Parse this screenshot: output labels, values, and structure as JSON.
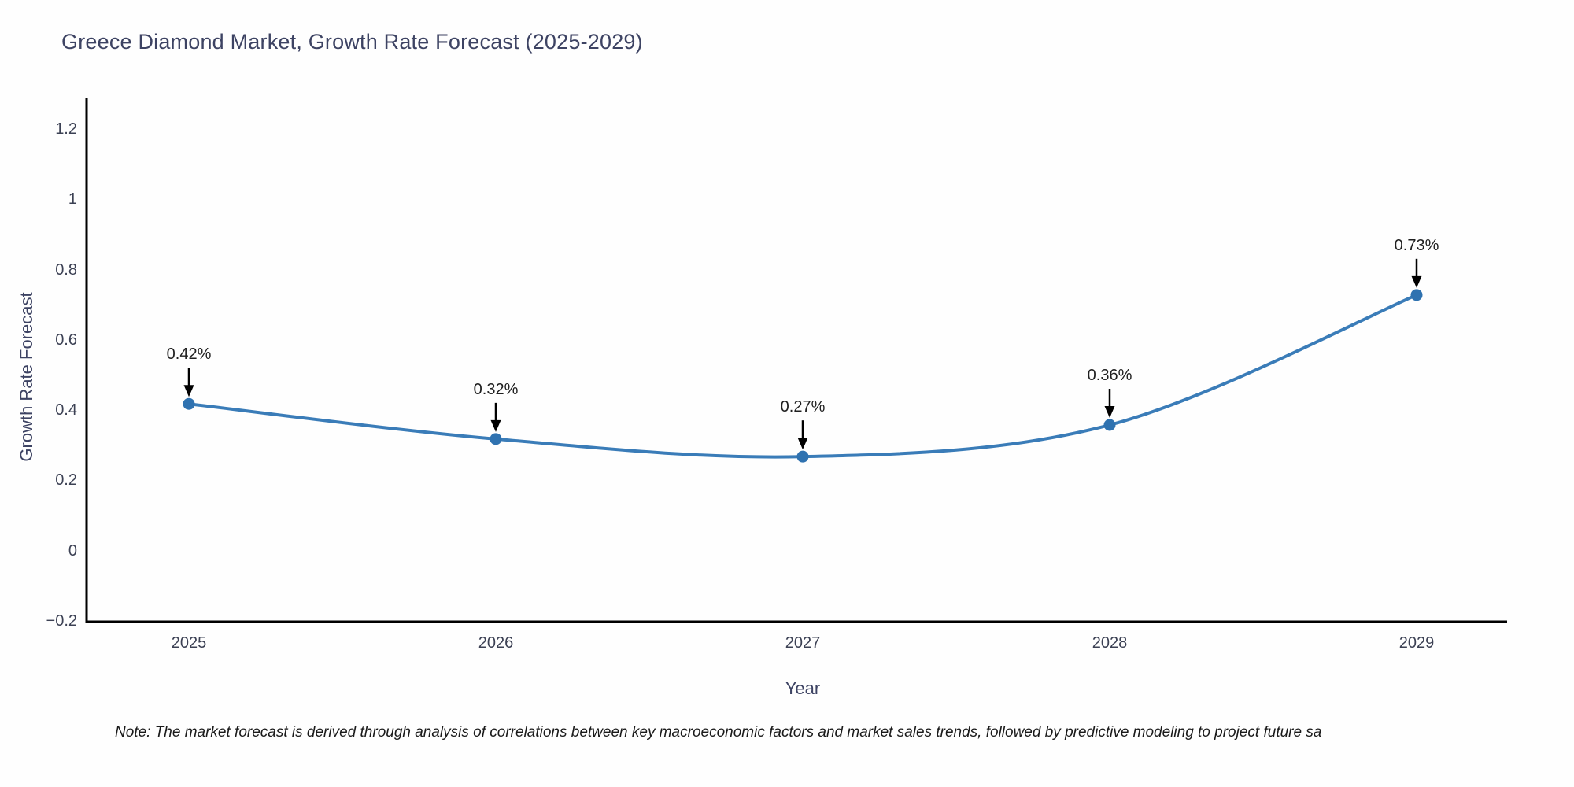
{
  "title": "Greece Diamond Market, Growth Rate Forecast (2025-2029)",
  "note": "Note: The market forecast is derived through analysis of correlations between key macroeconomic factors and market sales trends, followed by predictive modeling to project future sa",
  "colors": {
    "title_text": "#3d4363",
    "tick_text": "#3c4154",
    "axis_line": "#000000",
    "annotation_text": "#1f1f1f",
    "background": "#fefefe"
  },
  "chart_data": {
    "type": "line",
    "title": "Greece Diamond Market, Growth Rate Forecast (2025-2029)",
    "xlabel": "Year",
    "ylabel": "Growth Rate Forecast",
    "categories": [
      "2025",
      "2026",
      "2027",
      "2028",
      "2029"
    ],
    "values": [
      0.42,
      0.32,
      0.27,
      0.36,
      0.73
    ],
    "point_labels": [
      "0.42%",
      "0.32%",
      "0.27%",
      "0.36%",
      "0.73%"
    ],
    "ylim": [
      -0.2,
      1.2
    ],
    "ytick_values": [
      1.2,
      1,
      0.8,
      0.6,
      0.4,
      0.2,
      0,
      -0.2
    ],
    "ytick_labels": [
      "1.2",
      "1",
      "0.8",
      "0.6",
      "0.4",
      "0.2",
      "0",
      "−0.2"
    ],
    "grid": false,
    "legend": "none",
    "smooth": true,
    "line_color": "#3a7cb8",
    "marker_color": "#2f72b0",
    "annotation_arrow_color": "#000000"
  }
}
